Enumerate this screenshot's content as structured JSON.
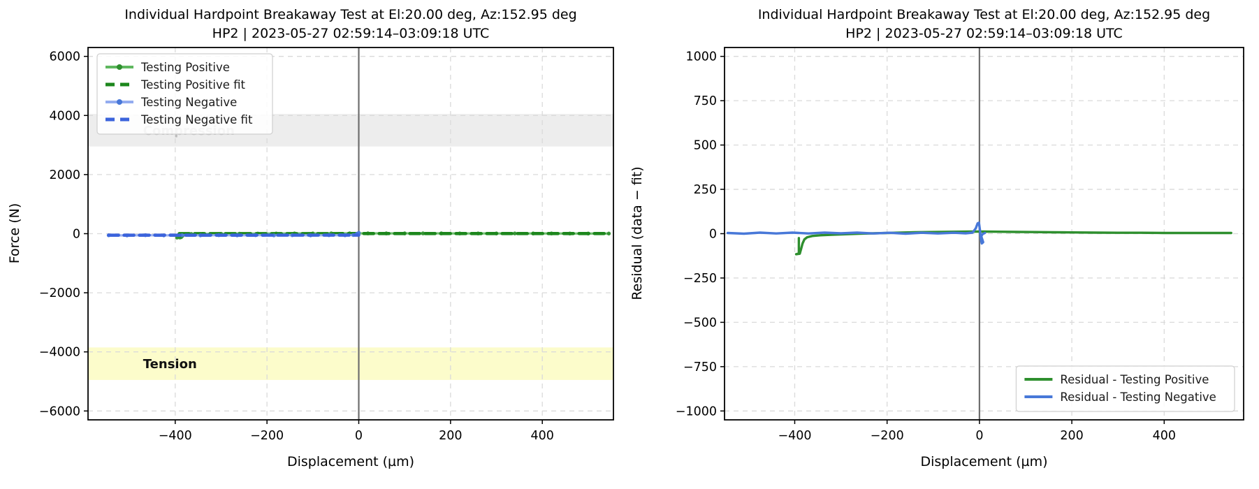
{
  "chart_data": [
    {
      "type": "line",
      "title": "Individual Hardpoint Breakaway Test at El:20.00 deg, Az:152.95 deg",
      "subtitle": "HP2 | 2023-05-27 02:59:14–03:09:18 UTC",
      "xlabel": "Displacement (µm)",
      "ylabel": "Force (N)",
      "xlim": [
        -590,
        555
      ],
      "ylim": [
        -6300,
        6300
      ],
      "xticks": {
        "values": [
          -400,
          -200,
          0,
          200,
          400
        ],
        "labels": [
          "−400",
          "−200",
          "0",
          "200",
          "400"
        ]
      },
      "yticks": {
        "values": [
          6000,
          4000,
          2000,
          0,
          -2000,
          -4000,
          -6000
        ],
        "labels": [
          "6000",
          "4000",
          "2000",
          "0",
          "−2000",
          "−4000",
          "−6000"
        ]
      },
      "grid": {
        "show": true,
        "color": "#dadada",
        "dash": "7 6"
      },
      "axvline": {
        "x": 0,
        "color": "#6e6e6e",
        "width": 2.2
      },
      "bands": [
        {
          "label": "Compression",
          "from": 2950,
          "to": 4050,
          "fill": "#ededed",
          "label_color": "#bcbcbc",
          "label_x": -470
        },
        {
          "label": "Tension",
          "from": -4950,
          "to": -3850,
          "fill": "#fcfccb",
          "label_color": "#111111",
          "label_x": -470
        }
      ],
      "legend": {
        "loc": "upper left"
      },
      "series": [
        {
          "name": "Testing Positive",
          "color": "#5fb75f",
          "marker_color": "#2e8f2e",
          "style": "solid",
          "marker": true,
          "width": 3.4,
          "opacity": 0.85,
          "points": [
            [
              -391,
              -15
            ],
            [
              -390,
              -130
            ],
            [
              -396,
              -133
            ],
            [
              -387,
              -118
            ],
            [
              -384,
              -70
            ],
            [
              -381,
              -35
            ],
            [
              -375,
              -18
            ],
            [
              -365,
              -10
            ],
            [
              -340,
              -8
            ],
            [
              -300,
              -4
            ],
            [
              -260,
              -1
            ],
            [
              -220,
              2
            ],
            [
              -180,
              4
            ],
            [
              -140,
              6
            ],
            [
              -100,
              8
            ],
            [
              -60,
              9
            ],
            [
              -20,
              10
            ],
            [
              20,
              10
            ],
            [
              60,
              10
            ],
            [
              100,
              10
            ],
            [
              140,
              9
            ],
            [
              180,
              9
            ],
            [
              220,
              8
            ],
            [
              260,
              8
            ],
            [
              300,
              7
            ],
            [
              340,
              7
            ],
            [
              380,
              6
            ],
            [
              420,
              6
            ],
            [
              460,
              5
            ],
            [
              500,
              5
            ],
            [
              545,
              5
            ]
          ]
        },
        {
          "name": "Testing Positive fit",
          "color": "#1d871d",
          "style": "dashed",
          "marker": false,
          "width": 4.6,
          "opacity": 1,
          "points": [
            [
              -391,
              2
            ],
            [
              545,
              4
            ]
          ]
        },
        {
          "name": "Testing Negative",
          "color": "#93acf0",
          "marker_color": "#4878d8",
          "style": "solid",
          "marker": true,
          "width": 3.4,
          "opacity": 0.9,
          "points": [
            [
              -545,
              -55
            ],
            [
              -505,
              -58
            ],
            [
              -465,
              -52
            ],
            [
              -425,
              -57
            ],
            [
              -385,
              -53
            ],
            [
              -345,
              -57
            ],
            [
              -305,
              -53
            ],
            [
              -265,
              -56
            ],
            [
              -225,
              -52
            ],
            [
              -185,
              -56
            ],
            [
              -145,
              -53
            ],
            [
              -105,
              -56
            ],
            [
              -65,
              -52
            ],
            [
              -30,
              -54
            ],
            [
              -12,
              -45
            ],
            [
              -4,
              -5
            ],
            [
              0,
              28
            ]
          ]
        },
        {
          "name": "Testing Negative fit",
          "color": "#3c64dc",
          "style": "dashed",
          "marker": false,
          "width": 4.6,
          "opacity": 1,
          "points": [
            [
              -545,
              -52
            ],
            [
              0,
              -50
            ]
          ]
        }
      ]
    },
    {
      "type": "line",
      "title": "Individual Hardpoint Breakaway Test at El:20.00 deg, Az:152.95 deg",
      "subtitle": "HP2 | 2023-05-27 02:59:14–03:09:18 UTC",
      "xlabel": "Displacement (µm)",
      "ylabel": "Residual (data − fit)",
      "xlim": [
        -552,
        572
      ],
      "ylim": [
        -1050,
        1050
      ],
      "xticks": {
        "values": [
          -400,
          -200,
          0,
          200,
          400
        ],
        "labels": [
          "−400",
          "−200",
          "0",
          "200",
          "400"
        ]
      },
      "yticks": {
        "values": [
          1000,
          750,
          500,
          250,
          0,
          -250,
          -500,
          -750,
          -1000
        ],
        "labels": [
          "1000",
          "750",
          "500",
          "250",
          "0",
          "−250",
          "−500",
          "−750",
          "−1000"
        ]
      },
      "grid": {
        "show": true,
        "color": "#dadada",
        "dash": "7 6"
      },
      "axvline": {
        "x": 0,
        "color": "#6e6e6e",
        "width": 2.2
      },
      "bands": [],
      "legend": {
        "loc": "lower right"
      },
      "series": [
        {
          "name": "Residual - Testing Positive",
          "color": "#2e8f2e",
          "style": "solid",
          "marker": false,
          "width": 3.4,
          "opacity": 1,
          "points": [
            [
              -391,
              -25
            ],
            [
              -391,
              -112
            ],
            [
              -397,
              -116
            ],
            [
              -389,
              -113
            ],
            [
              -386,
              -85
            ],
            [
              -383,
              -55
            ],
            [
              -379,
              -32
            ],
            [
              -373,
              -20
            ],
            [
              -362,
              -13
            ],
            [
              -345,
              -9
            ],
            [
              -320,
              -6
            ],
            [
              -290,
              -3
            ],
            [
              -260,
              0
            ],
            [
              -230,
              2
            ],
            [
              -200,
              4
            ],
            [
              -170,
              6
            ],
            [
              -140,
              8
            ],
            [
              -110,
              9
            ],
            [
              -80,
              10
            ],
            [
              -50,
              11
            ],
            [
              -20,
              12
            ],
            [
              10,
              12
            ],
            [
              40,
              11
            ],
            [
              80,
              10
            ],
            [
              120,
              9
            ],
            [
              160,
              8
            ],
            [
              200,
              7
            ],
            [
              250,
              6
            ],
            [
              300,
              5
            ],
            [
              350,
              5
            ],
            [
              400,
              4
            ],
            [
              450,
              4
            ],
            [
              500,
              4
            ],
            [
              545,
              4
            ]
          ]
        },
        {
          "name": "Residual - Testing Negative",
          "color": "#4878d8",
          "style": "solid",
          "marker": false,
          "width": 3.4,
          "opacity": 1,
          "points": [
            [
              -545,
              4
            ],
            [
              -510,
              0
            ],
            [
              -475,
              6
            ],
            [
              -440,
              1
            ],
            [
              -405,
              6
            ],
            [
              -370,
              1
            ],
            [
              -335,
              6
            ],
            [
              -300,
              2
            ],
            [
              -265,
              6
            ],
            [
              -230,
              1
            ],
            [
              -195,
              5
            ],
            [
              -160,
              0
            ],
            [
              -125,
              5
            ],
            [
              -90,
              1
            ],
            [
              -55,
              5
            ],
            [
              -30,
              2
            ],
            [
              -15,
              6
            ],
            [
              -8,
              30
            ],
            [
              -4,
              58
            ],
            [
              -1,
              62
            ],
            [
              1,
              20
            ],
            [
              3,
              -30
            ],
            [
              5,
              -55
            ],
            [
              8,
              -48
            ],
            [
              4,
              -15
            ],
            [
              7,
              -2
            ],
            [
              12,
              4
            ]
          ]
        }
      ]
    }
  ]
}
